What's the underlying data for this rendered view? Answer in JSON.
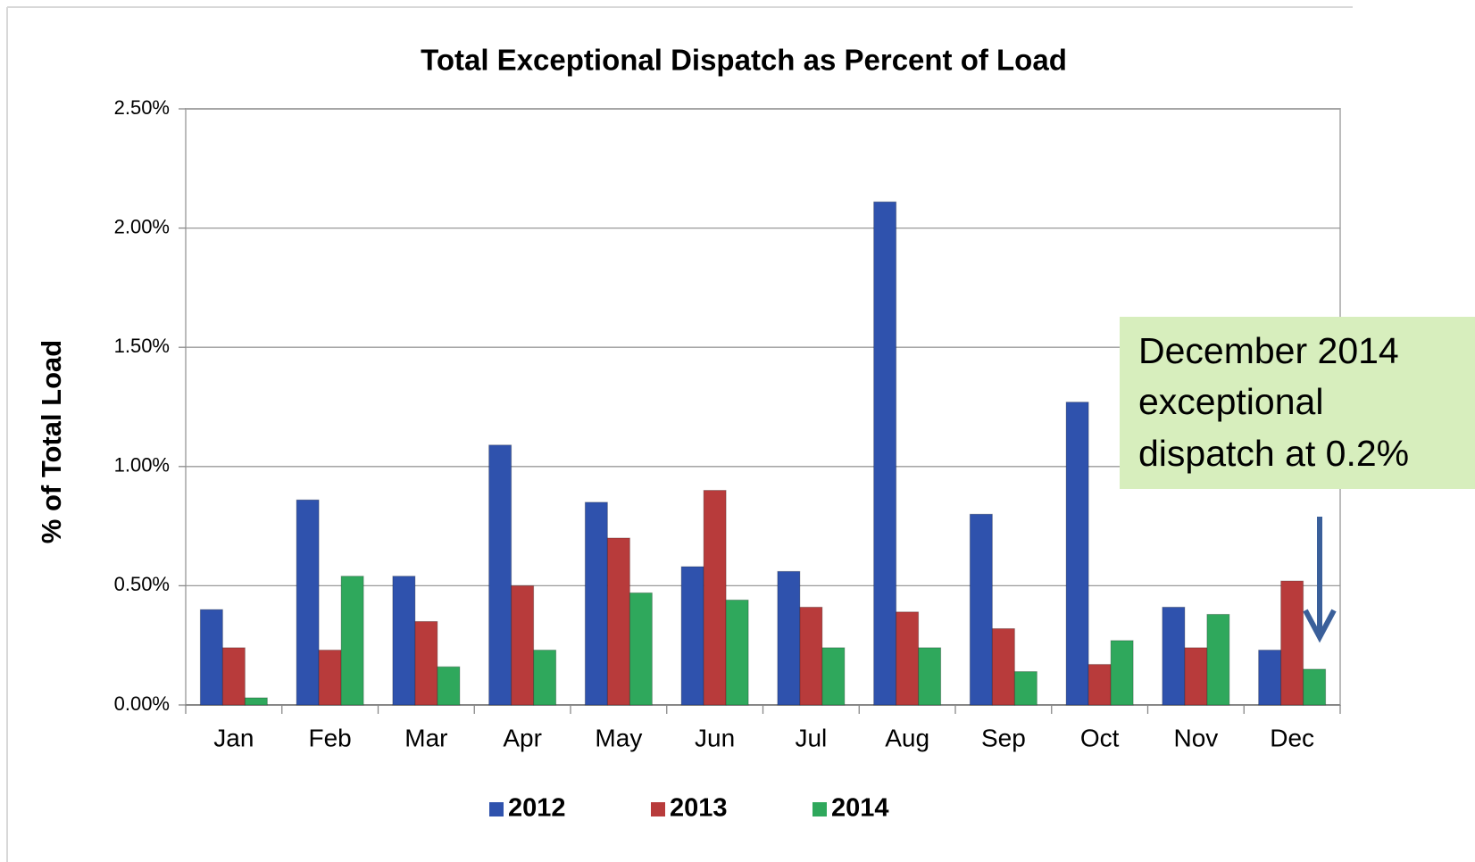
{
  "chart_data": {
    "type": "bar",
    "title": "Total Exceptional Dispatch as Percent of Load",
    "y_label": "% of Total Load",
    "annotation": [
      "December 2014",
      "exceptional",
      "dispatch at 0.2%"
    ],
    "categories": [
      "Jan",
      "Feb",
      "Mar",
      "Apr",
      "May",
      "Jun",
      "Jul",
      "Aug",
      "Sep",
      "Oct",
      "Nov",
      "Dec"
    ],
    "series": [
      {
        "name": "2012",
        "color": "#2f52ad",
        "values": [
          0.4,
          0.86,
          0.54,
          1.09,
          0.85,
          0.58,
          0.56,
          2.11,
          0.8,
          1.27,
          0.41,
          0.23
        ]
      },
      {
        "name": "2013",
        "color": "#b83b3b",
        "values": [
          0.24,
          0.23,
          0.35,
          0.5,
          0.7,
          0.9,
          0.41,
          0.39,
          0.32,
          0.17,
          0.24,
          0.52
        ]
      },
      {
        "name": "2014",
        "color": "#2fa85c",
        "values": [
          0.03,
          0.54,
          0.16,
          0.23,
          0.47,
          0.44,
          0.24,
          0.24,
          0.14,
          0.27,
          0.38,
          0.15
        ]
      }
    ],
    "ylim": [
      0,
      2.5
    ],
    "yticks": [
      {
        "value": 0,
        "label": "0.00%"
      },
      {
        "value": 0.5,
        "label": "0.50%"
      },
      {
        "value": 1,
        "label": "1.00%"
      },
      {
        "value": 1.5,
        "label": "1.50%"
      },
      {
        "value": 2,
        "label": "2.00%"
      },
      {
        "value": 2.5,
        "label": "2.50%"
      }
    ],
    "grid": true
  }
}
